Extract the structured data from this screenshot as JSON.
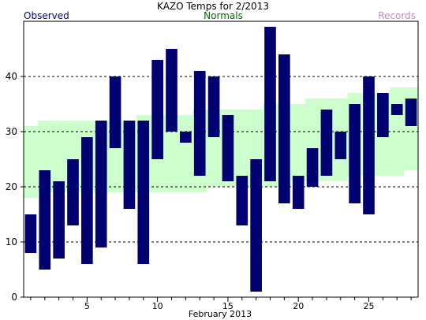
{
  "chart_data": {
    "type": "bar",
    "title": "KAZO Temps for  2/2013",
    "xlabel": "February 2013",
    "ylabel": "",
    "legend": {
      "observed": "Observed",
      "normals": "Normals",
      "records": "Records"
    },
    "colors": {
      "observed": "#000070",
      "normals_fill": "#ccffcc",
      "observed_legend_text": "#000080",
      "normals_legend_text": "#006600",
      "records_legend_text": "#cc88cc",
      "grid": "#000000"
    },
    "ylim": [
      0,
      50
    ],
    "xlim": [
      0.5,
      28.5
    ],
    "y_ticks": [
      0,
      10,
      20,
      30,
      40
    ],
    "x_ticks": [
      5,
      10,
      15,
      20,
      25
    ],
    "grid": "horizontal dashed at y ticks",
    "observed": [
      {
        "day": 1,
        "low": 8,
        "high": 15
      },
      {
        "day": 2,
        "low": 5,
        "high": 23
      },
      {
        "day": 3,
        "low": 7,
        "high": 21
      },
      {
        "day": 4,
        "low": 13,
        "high": 25
      },
      {
        "day": 5,
        "low": 6,
        "high": 29
      },
      {
        "day": 6,
        "low": 9,
        "high": 32
      },
      {
        "day": 7,
        "low": 27,
        "high": 40
      },
      {
        "day": 8,
        "low": 16,
        "high": 32
      },
      {
        "day": 9,
        "low": 6,
        "high": 32
      },
      {
        "day": 10,
        "low": 25,
        "high": 43
      },
      {
        "day": 11,
        "low": 30,
        "high": 45
      },
      {
        "day": 12,
        "low": 28,
        "high": 30
      },
      {
        "day": 13,
        "low": 22,
        "high": 41
      },
      {
        "day": 14,
        "low": 29,
        "high": 40
      },
      {
        "day": 15,
        "low": 21,
        "high": 33
      },
      {
        "day": 16,
        "low": 13,
        "high": 22
      },
      {
        "day": 17,
        "low": 1,
        "high": 25
      },
      {
        "day": 18,
        "low": 21,
        "high": 49
      },
      {
        "day": 19,
        "low": 17,
        "high": 44
      },
      {
        "day": 20,
        "low": 16,
        "high": 22
      },
      {
        "day": 21,
        "low": 20,
        "high": 27
      },
      {
        "day": 22,
        "low": 22,
        "high": 34
      },
      {
        "day": 23,
        "low": 25,
        "high": 30
      },
      {
        "day": 24,
        "low": 17,
        "high": 35
      },
      {
        "day": 25,
        "low": 15,
        "high": 40
      },
      {
        "day": 26,
        "low": 29,
        "high": 37
      },
      {
        "day": 27,
        "low": 33,
        "high": 35
      },
      {
        "day": 28,
        "low": 31,
        "high": 36
      }
    ],
    "normals": [
      {
        "day": 1,
        "low": 18,
        "high": 31
      },
      {
        "day": 2,
        "low": 19,
        "high": 32
      },
      {
        "day": 3,
        "low": 19,
        "high": 32
      },
      {
        "day": 4,
        "low": 19,
        "high": 32
      },
      {
        "day": 5,
        "low": 19,
        "high": 32
      },
      {
        "day": 6,
        "low": 19,
        "high": 32
      },
      {
        "day": 7,
        "low": 19,
        "high": 32
      },
      {
        "day": 8,
        "low": 19,
        "high": 32
      },
      {
        "day": 9,
        "low": 19,
        "high": 33
      },
      {
        "day": 10,
        "low": 19,
        "high": 33
      },
      {
        "day": 11,
        "low": 19,
        "high": 33
      },
      {
        "day": 12,
        "low": 19,
        "high": 33
      },
      {
        "day": 13,
        "low": 19,
        "high": 34
      },
      {
        "day": 14,
        "low": 20,
        "high": 34
      },
      {
        "day": 15,
        "low": 20,
        "high": 34
      },
      {
        "day": 16,
        "low": 20,
        "high": 34
      },
      {
        "day": 17,
        "low": 20,
        "high": 34
      },
      {
        "day": 18,
        "low": 20,
        "high": 35
      },
      {
        "day": 19,
        "low": 20,
        "high": 35
      },
      {
        "day": 20,
        "low": 21,
        "high": 35
      },
      {
        "day": 21,
        "low": 21,
        "high": 36
      },
      {
        "day": 22,
        "low": 21,
        "high": 36
      },
      {
        "day": 23,
        "low": 21,
        "high": 36
      },
      {
        "day": 24,
        "low": 22,
        "high": 37
      },
      {
        "day": 25,
        "low": 22,
        "high": 37
      },
      {
        "day": 26,
        "low": 22,
        "high": 37
      },
      {
        "day": 27,
        "low": 22,
        "high": 38
      },
      {
        "day": 28,
        "low": 23,
        "high": 38
      }
    ]
  }
}
